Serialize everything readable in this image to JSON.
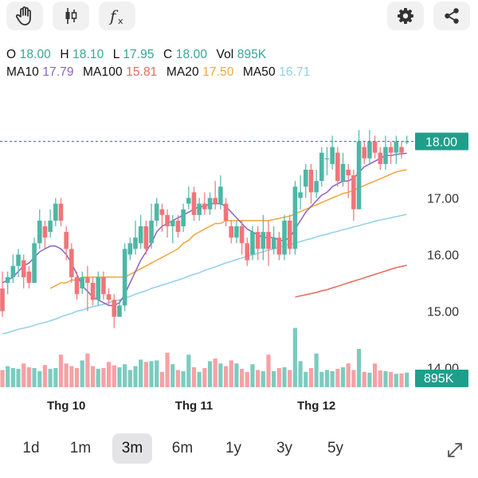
{
  "toolbar": {
    "left_icons": [
      "hand-icon",
      "candlestick-icon",
      "function-icon"
    ],
    "right_icons": [
      "gear-icon",
      "share-icon"
    ]
  },
  "ohlc": {
    "o_label": "O",
    "o": "18.00",
    "h_label": "H",
    "h": "18.10",
    "l_label": "L",
    "l": "17.95",
    "c_label": "C",
    "c": "18.00",
    "vol_label": "Vol",
    "vol": "895K"
  },
  "ma": {
    "ma10_label": "MA10",
    "ma10": "17.79",
    "ma100_label": "MA100",
    "ma100": "15.81",
    "ma20_label": "MA20",
    "ma20": "17.50",
    "ma50_label": "MA50",
    "ma50": "16.71"
  },
  "colors": {
    "up": "#4fb6a6",
    "down": "#f0757a",
    "up_vol": "#7ccbbf",
    "down_vol": "#f6a1a5",
    "ma10": "#8a63c4",
    "ma20": "#f3a53a",
    "ma50": "#8fd0ec",
    "ma100": "#e46a5a",
    "accent": "#1f9e8c",
    "ohlc_value": "#34a795"
  },
  "chart_data": {
    "type": "candlestick",
    "y_ticks": [
      "18.00",
      "17.00",
      "16.00",
      "15.00",
      "14.00"
    ],
    "ylim": [
      13.6,
      18.95
    ],
    "x_ticks": [
      {
        "label": "Thg 10",
        "index": 12
      },
      {
        "label": "Thg 11",
        "index": 36
      },
      {
        "label": "Thg 12",
        "index": 59
      }
    ],
    "last_price_label": "18.00",
    "last_volume_label": "895K",
    "candles": [
      [
        15.4,
        15.0,
        15.7,
        14.9
      ],
      [
        15.5,
        15.6,
        15.7,
        15.3
      ],
      [
        15.6,
        15.8,
        16.0,
        15.5
      ],
      [
        15.8,
        16.0,
        16.1,
        15.6
      ],
      [
        15.9,
        15.6,
        16.0,
        15.4
      ],
      [
        15.7,
        15.5,
        15.8,
        15.4
      ],
      [
        15.5,
        16.2,
        16.3,
        15.5
      ],
      [
        16.2,
        16.6,
        16.8,
        16.1
      ],
      [
        16.5,
        16.3,
        16.6,
        16.1
      ],
      [
        16.4,
        16.6,
        16.8,
        16.3
      ],
      [
        16.6,
        16.9,
        17.0,
        16.5
      ],
      [
        16.9,
        16.6,
        17.0,
        16.5
      ],
      [
        16.4,
        16.1,
        16.5,
        15.9
      ],
      [
        16.1,
        15.6,
        16.2,
        15.5
      ],
      [
        15.6,
        15.3,
        15.7,
        15.2
      ],
      [
        15.4,
        15.6,
        15.7,
        15.3
      ],
      [
        15.6,
        15.5,
        15.8,
        15.0
      ],
      [
        15.5,
        15.2,
        15.6,
        15.1
      ],
      [
        15.2,
        15.6,
        15.7,
        15.1
      ],
      [
        15.6,
        15.3,
        15.7,
        15.2
      ],
      [
        15.3,
        15.2,
        15.4,
        15.1
      ],
      [
        15.2,
        14.9,
        15.3,
        14.7
      ],
      [
        14.9,
        15.1,
        15.2,
        14.9
      ],
      [
        15.1,
        16.1,
        16.2,
        15.0
      ],
      [
        16.0,
        16.2,
        16.3,
        15.9
      ],
      [
        16.1,
        16.3,
        16.6,
        16.0
      ],
      [
        16.2,
        16.5,
        16.7,
        16.1
      ],
      [
        16.5,
        16.1,
        16.6,
        16.0
      ],
      [
        16.2,
        16.6,
        16.9,
        16.1
      ],
      [
        16.6,
        16.9,
        17.0,
        16.5
      ],
      [
        16.8,
        16.7,
        16.9,
        16.4
      ],
      [
        16.7,
        16.5,
        16.8,
        16.3
      ],
      [
        16.5,
        16.6,
        16.7,
        16.2
      ],
      [
        16.6,
        16.4,
        16.7,
        16.3
      ],
      [
        16.5,
        16.8,
        16.9,
        16.4
      ],
      [
        16.9,
        17.0,
        17.2,
        16.8
      ],
      [
        17.1,
        16.7,
        17.2,
        16.6
      ],
      [
        16.7,
        16.9,
        17.0,
        16.6
      ],
      [
        16.9,
        16.8,
        17.1,
        16.7
      ],
      [
        16.8,
        17.0,
        17.1,
        16.7
      ],
      [
        17.0,
        16.9,
        17.3,
        16.8
      ],
      [
        16.9,
        17.2,
        17.4,
        16.8
      ],
      [
        16.9,
        16.6,
        17.0,
        16.5
      ],
      [
        16.5,
        16.3,
        16.6,
        16.2
      ],
      [
        16.3,
        16.5,
        16.6,
        16.2
      ],
      [
        16.5,
        16.2,
        16.6,
        16.0
      ],
      [
        16.2,
        15.9,
        16.3,
        15.8
      ],
      [
        16.0,
        16.4,
        16.5,
        15.9
      ],
      [
        16.4,
        16.1,
        16.5,
        15.9
      ],
      [
        16.1,
        16.4,
        16.7,
        15.9
      ],
      [
        16.4,
        16.1,
        16.6,
        15.8
      ],
      [
        16.1,
        16.3,
        16.5,
        16.0
      ],
      [
        16.3,
        16.0,
        16.4,
        15.9
      ],
      [
        16.0,
        16.6,
        16.7,
        15.9
      ],
      [
        16.6,
        16.1,
        16.7,
        16.0
      ],
      [
        16.1,
        17.2,
        17.3,
        16.0
      ],
      [
        17.0,
        17.1,
        17.4,
        16.8
      ],
      [
        17.2,
        17.5,
        17.6,
        17.0
      ],
      [
        17.5,
        17.1,
        17.6,
        16.9
      ],
      [
        17.1,
        17.3,
        17.5,
        17.0
      ],
      [
        17.3,
        17.8,
        17.9,
        17.2
      ],
      [
        17.7,
        17.7,
        17.9,
        17.4
      ],
      [
        17.6,
        17.9,
        18.1,
        17.5
      ],
      [
        17.8,
        17.3,
        17.9,
        17.2
      ],
      [
        17.3,
        17.6,
        17.8,
        17.2
      ],
      [
        17.5,
        17.4,
        17.6,
        17.0
      ],
      [
        17.4,
        16.8,
        17.5,
        16.6
      ],
      [
        16.8,
        18.0,
        18.2,
        16.8
      ],
      [
        17.9,
        17.7,
        18.0,
        17.6
      ],
      [
        17.7,
        18.0,
        18.2,
        17.6
      ],
      [
        18.0,
        17.8,
        18.1,
        17.7
      ],
      [
        17.8,
        17.6,
        17.9,
        17.5
      ],
      [
        17.6,
        17.9,
        18.1,
        17.5
      ],
      [
        17.9,
        17.8,
        18.0,
        17.6
      ],
      [
        17.8,
        18.0,
        18.1,
        17.6
      ],
      [
        17.9,
        17.8,
        18.0,
        17.7
      ],
      [
        18.0,
        18.0,
        18.1,
        17.95
      ]
    ],
    "volumes": [
      0.45,
      0.55,
      0.5,
      0.48,
      0.62,
      0.52,
      0.5,
      0.42,
      0.58,
      0.48,
      0.5,
      0.85,
      0.62,
      0.55,
      0.5,
      0.7,
      0.88,
      0.55,
      0.48,
      0.5,
      0.66,
      0.57,
      0.52,
      0.6,
      0.45,
      0.55,
      0.72,
      0.66,
      0.68,
      0.7,
      0.4,
      0.9,
      0.6,
      0.45,
      0.42,
      0.85,
      0.52,
      0.4,
      0.5,
      0.68,
      0.75,
      0.62,
      0.55,
      0.7,
      0.62,
      0.48,
      0.4,
      0.6,
      0.45,
      0.42,
      0.85,
      0.42,
      0.5,
      0.52,
      0.45,
      1.55,
      0.68,
      0.4,
      0.5,
      0.88,
      0.4,
      0.45,
      0.42,
      0.48,
      0.52,
      0.62,
      0.45,
      1.0,
      0.4,
      0.38,
      0.62,
      0.44,
      0.42,
      0.4,
      0.35,
      0.36,
      0.38
    ],
    "ma10": [
      15.5,
      15.55,
      15.6,
      15.7,
      15.8,
      15.85,
      15.95,
      16.05,
      16.1,
      16.15,
      16.15,
      16.1,
      16.0,
      15.85,
      15.65,
      15.45,
      15.35,
      15.25,
      15.2,
      15.15,
      15.1,
      15.1,
      15.15,
      15.3,
      15.5,
      15.7,
      15.9,
      16.05,
      16.2,
      16.4,
      16.5,
      16.55,
      16.6,
      16.65,
      16.7,
      16.75,
      16.8,
      16.85,
      16.85,
      16.9,
      16.9,
      16.9,
      16.85,
      16.75,
      16.65,
      16.55,
      16.45,
      16.4,
      16.35,
      16.3,
      16.3,
      16.3,
      16.25,
      16.25,
      16.3,
      16.45,
      16.6,
      16.75,
      16.85,
      16.95,
      17.05,
      17.1,
      17.2,
      17.25,
      17.3,
      17.3,
      17.35,
      17.45,
      17.55,
      17.6,
      17.65,
      17.7,
      17.75,
      17.75,
      17.77,
      17.78,
      17.79
    ],
    "ma20": [
      null,
      null,
      null,
      null,
      null,
      null,
      null,
      null,
      null,
      15.4,
      15.45,
      15.5,
      15.5,
      15.55,
      15.55,
      15.6,
      15.6,
      15.6,
      15.6,
      15.6,
      15.6,
      15.6,
      15.6,
      15.6,
      15.65,
      15.7,
      15.75,
      15.8,
      15.85,
      15.9,
      15.95,
      16.0,
      16.05,
      16.1,
      16.2,
      16.25,
      16.35,
      16.4,
      16.45,
      16.5,
      16.55,
      16.55,
      16.6,
      16.6,
      16.6,
      16.6,
      16.6,
      16.6,
      16.6,
      16.6,
      16.6,
      16.62,
      16.64,
      16.66,
      16.68,
      16.72,
      16.76,
      16.8,
      16.84,
      16.88,
      16.92,
      16.96,
      17.0,
      17.04,
      17.08,
      17.1,
      17.14,
      17.18,
      17.22,
      17.26,
      17.3,
      17.34,
      17.38,
      17.42,
      17.46,
      17.48,
      17.5
    ],
    "ma50": [
      14.6,
      14.62,
      14.65,
      14.68,
      14.7,
      14.72,
      14.75,
      14.78,
      14.8,
      14.83,
      14.86,
      14.9,
      14.93,
      14.96,
      15.0,
      15.02,
      15.05,
      15.08,
      15.1,
      15.12,
      15.15,
      15.18,
      15.2,
      15.23,
      15.26,
      15.3,
      15.33,
      15.36,
      15.4,
      15.43,
      15.46,
      15.49,
      15.52,
      15.55,
      15.58,
      15.62,
      15.65,
      15.68,
      15.72,
      15.75,
      15.78,
      15.82,
      15.85,
      15.88,
      15.91,
      15.94,
      15.97,
      16.0,
      16.02,
      16.05,
      16.08,
      16.1,
      16.13,
      16.16,
      16.18,
      16.2,
      16.23,
      16.26,
      16.28,
      16.31,
      16.34,
      16.36,
      16.39,
      16.41,
      16.44,
      16.46,
      16.49,
      16.51,
      16.54,
      16.56,
      16.59,
      16.61,
      16.63,
      16.65,
      16.67,
      16.69,
      16.71
    ],
    "ma100_start_index": 55,
    "ma100": [
      15.25,
      15.27,
      15.29,
      15.31,
      15.33,
      15.36,
      15.38,
      15.41,
      15.44,
      15.47,
      15.5,
      15.53,
      15.56,
      15.59,
      15.62,
      15.65,
      15.68,
      15.71,
      15.74,
      15.77,
      15.79,
      15.81
    ]
  },
  "ranges": [
    "1d",
    "1m",
    "3m",
    "6m",
    "1y",
    "3y",
    "5y"
  ],
  "active_range": "3m",
  "expand_icon": "expand-icon"
}
